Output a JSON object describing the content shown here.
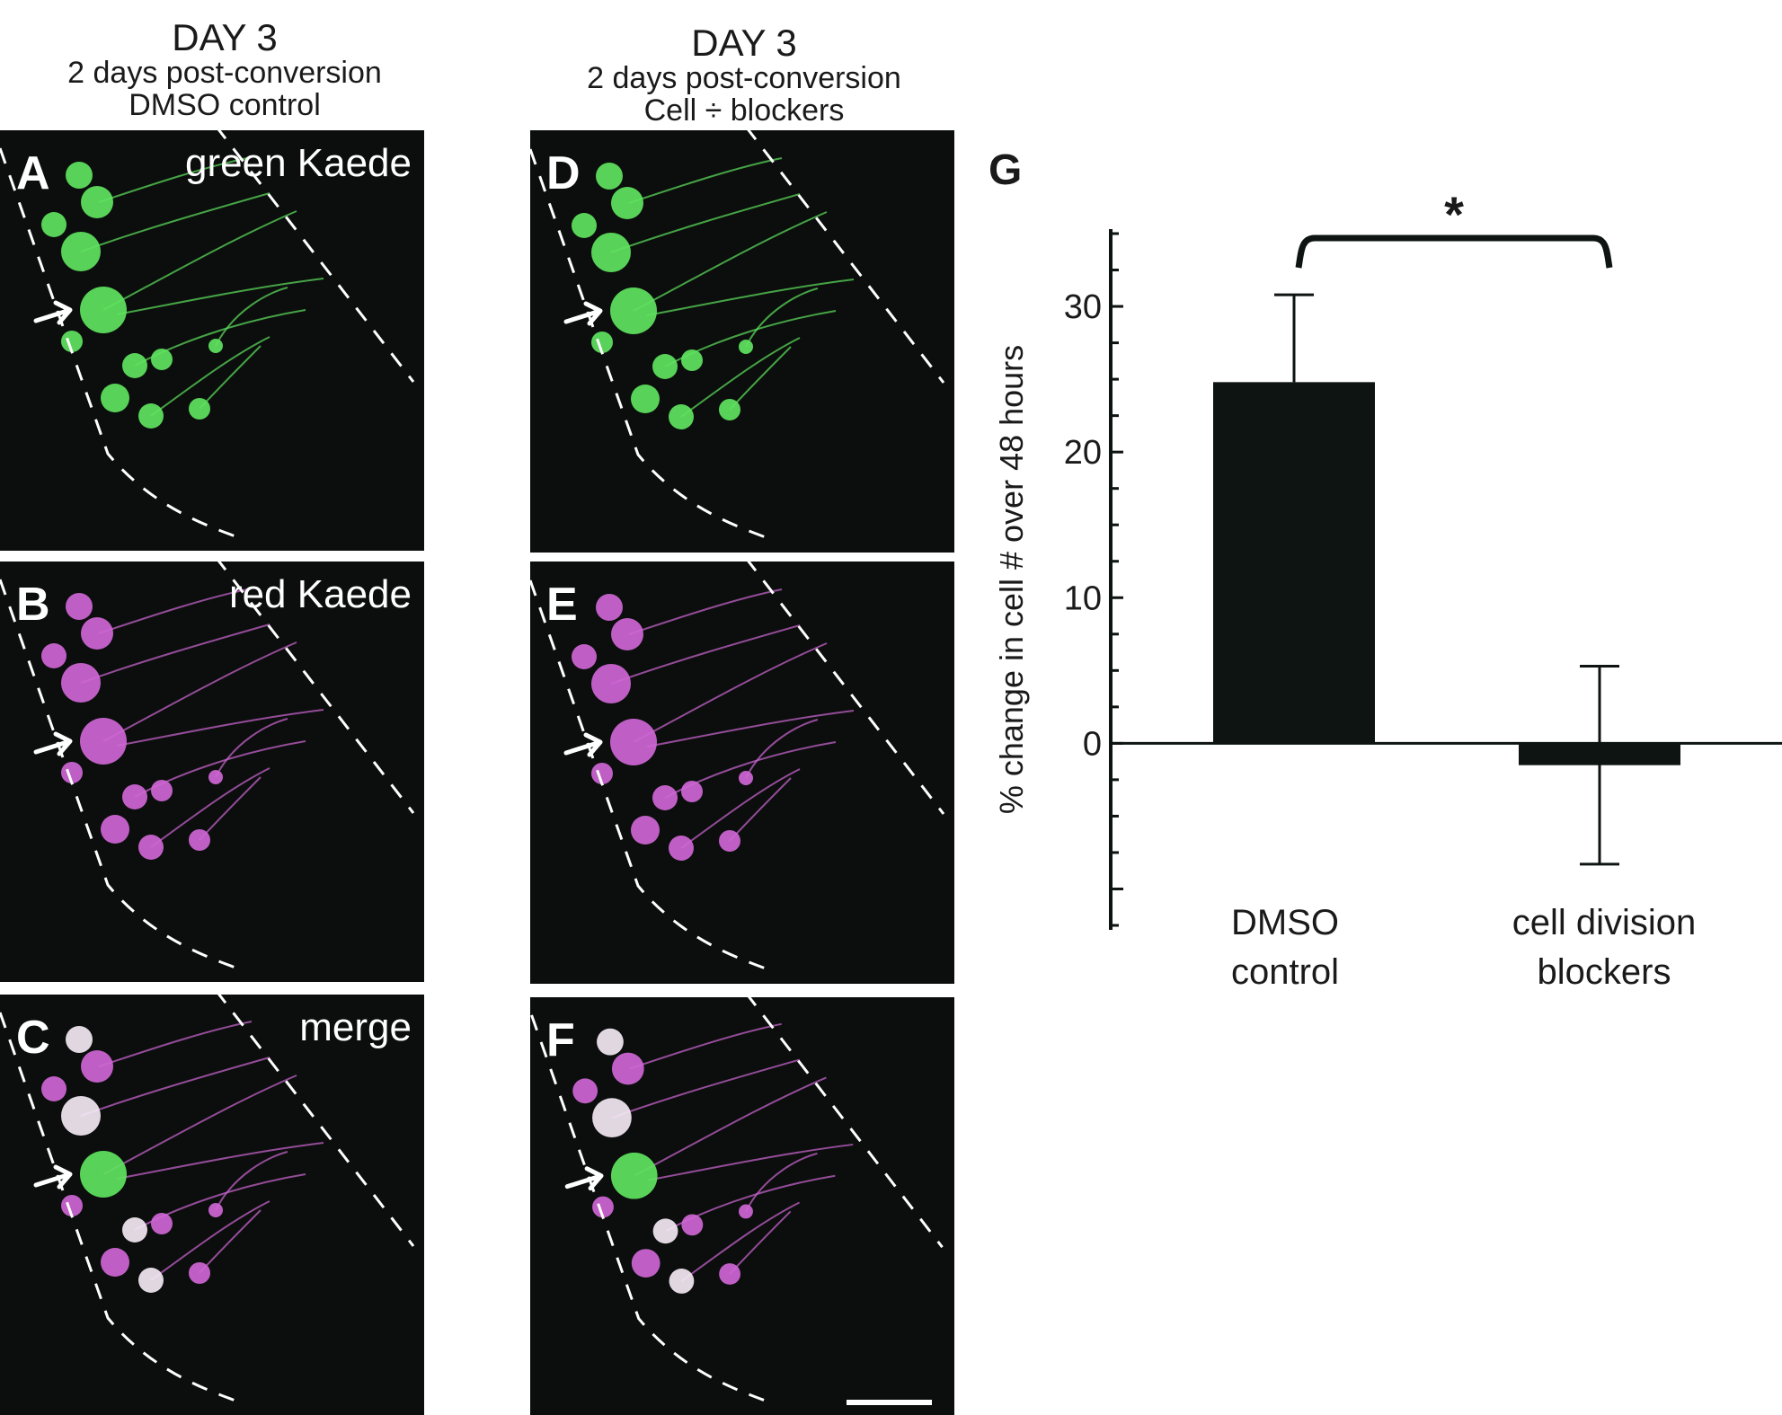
{
  "columns": [
    {
      "day": "DAY 3",
      "line2": "2 days post-conversion",
      "line3": "DMSO control"
    },
    {
      "day": "DAY 3",
      "line2": "2 days post-conversion",
      "line3": "Cell ÷ blockers"
    }
  ],
  "panels": [
    {
      "letter": "A",
      "caption": "green Kaede",
      "channel": "green"
    },
    {
      "letter": "B",
      "caption": "red Kaede",
      "channel": "magenta"
    },
    {
      "letter": "C",
      "caption": "merge",
      "channel": "merge"
    },
    {
      "letter": "D",
      "caption": "",
      "channel": "green"
    },
    {
      "letter": "E",
      "caption": "",
      "channel": "magenta"
    },
    {
      "letter": "F",
      "caption": "",
      "channel": "merge"
    }
  ],
  "colors": {
    "green": "#5fe35f",
    "magenta": "#cf66d6",
    "merge_white": "#f4e8f4",
    "panel_bg": "#0b0e0c",
    "bar": "#0d1411"
  },
  "chart_data": {
    "type": "bar",
    "panel_letter": "G",
    "categories": [
      [
        "DMSO",
        "control"
      ],
      [
        "cell division",
        "blockers"
      ]
    ],
    "values": [
      24.8,
      -1.5
    ],
    "error": [
      6.0,
      6.8
    ],
    "ylabel": "% change in cell # over 48 hours",
    "yticks": [
      0,
      10,
      20,
      30
    ],
    "ylim": [
      -12.5,
      35
    ],
    "significance": {
      "between": [
        0,
        1
      ],
      "label": "*"
    }
  }
}
